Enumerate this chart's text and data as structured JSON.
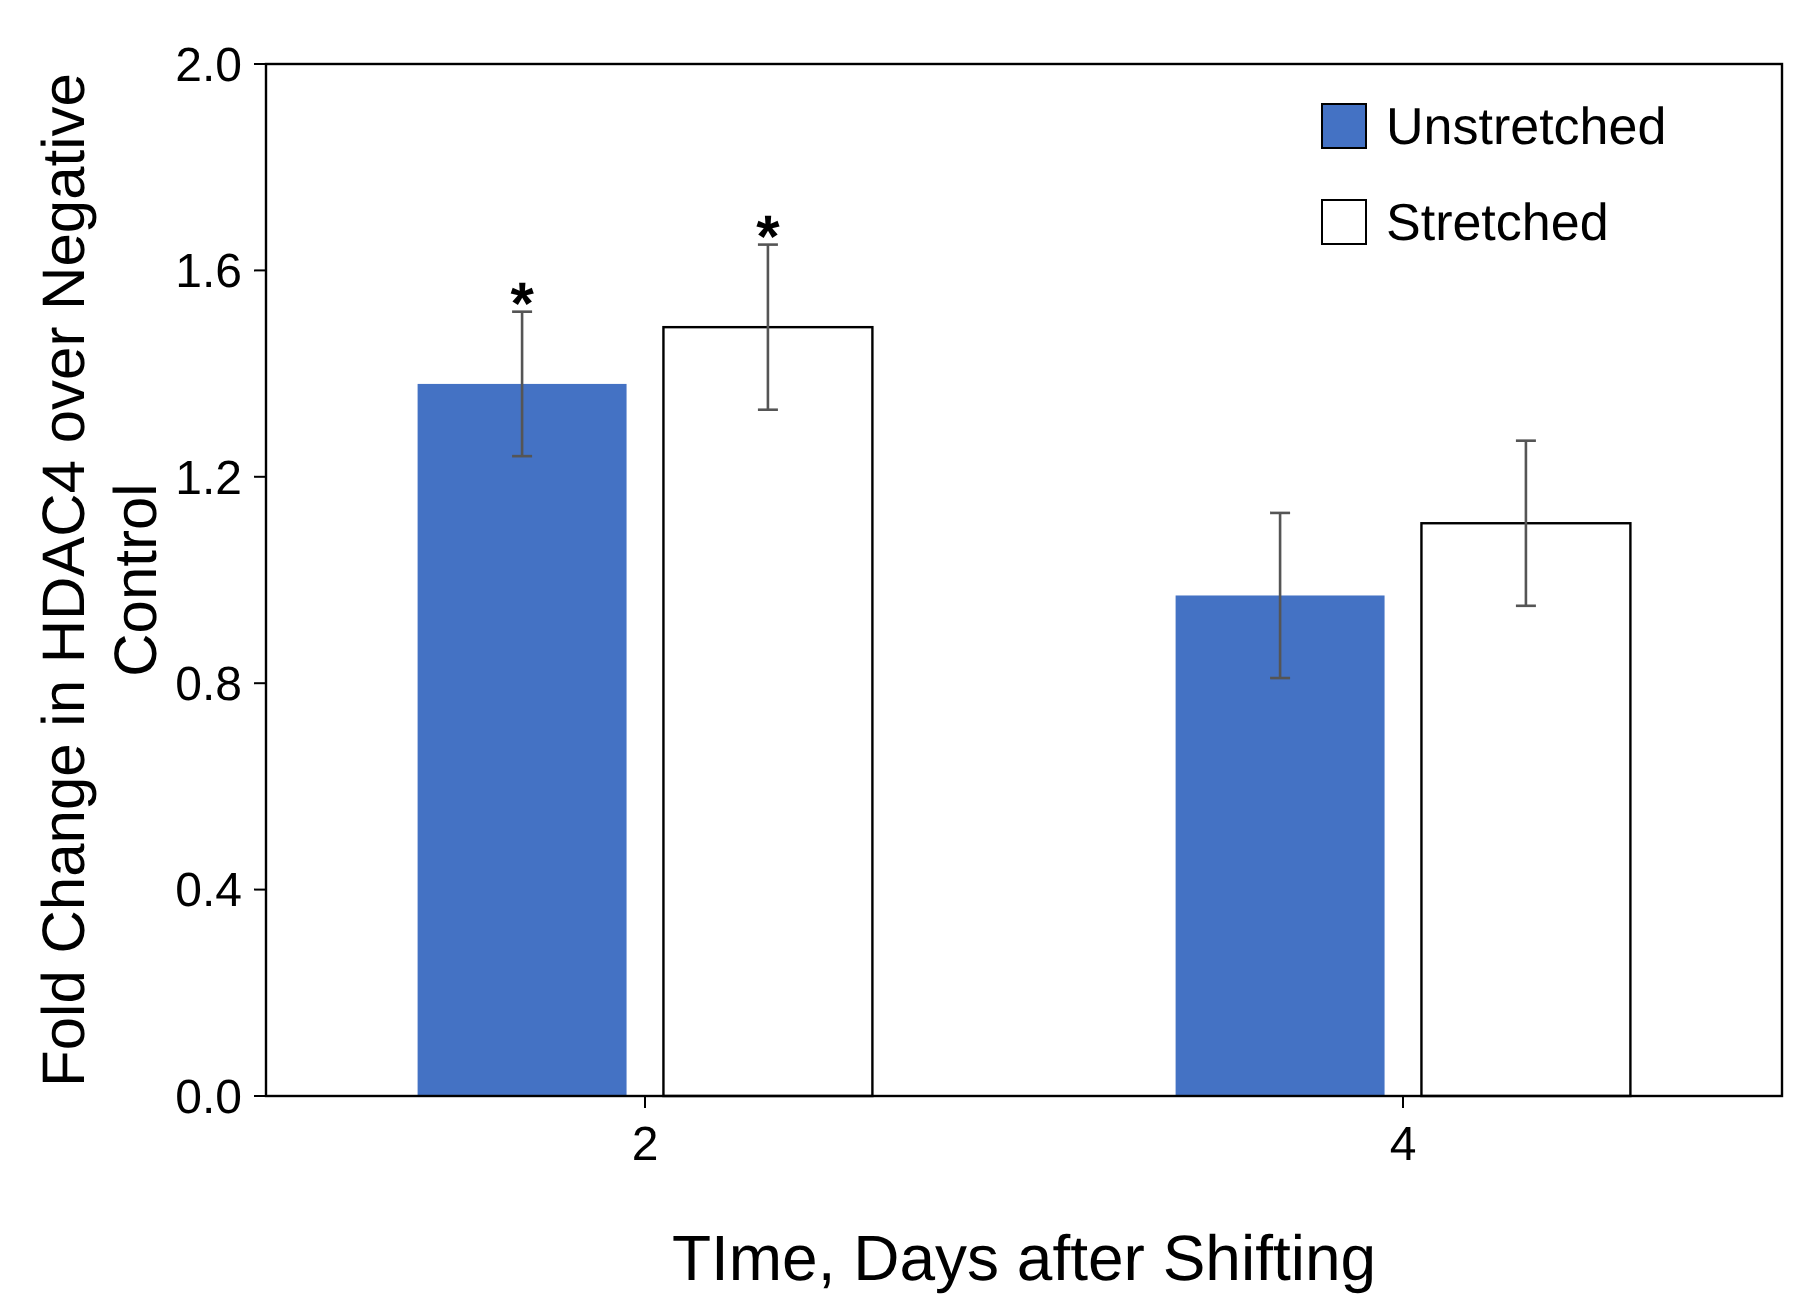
{
  "chart_data": {
    "type": "bar",
    "xlabel": "TIme, Days after Shifting",
    "ylabel": "Fold Change in HDAC4 over Negative Control",
    "categories": [
      "2",
      "4"
    ],
    "series": [
      {
        "name": "Unstretched",
        "color": "#4472c4",
        "values": [
          1.38,
          0.97
        ],
        "errors": [
          0.14,
          0.16
        ]
      },
      {
        "name": "Stretched",
        "color": "#ffffff",
        "values": [
          1.49,
          1.11
        ],
        "errors": [
          0.16,
          0.16
        ]
      }
    ],
    "annotations": [
      "*",
      "*"
    ],
    "ylim": [
      0,
      2
    ],
    "yticks": [
      {
        "value": 0,
        "label": "0.0"
      },
      {
        "value": 0.4,
        "label": "0.4"
      },
      {
        "value": 0.8,
        "label": "0.8"
      },
      {
        "value": 1.2,
        "label": "1.2"
      },
      {
        "value": 1.6,
        "label": "1.6"
      },
      {
        "value": 2,
        "label": "2.0"
      }
    ],
    "grid": false,
    "legend": "top right"
  }
}
